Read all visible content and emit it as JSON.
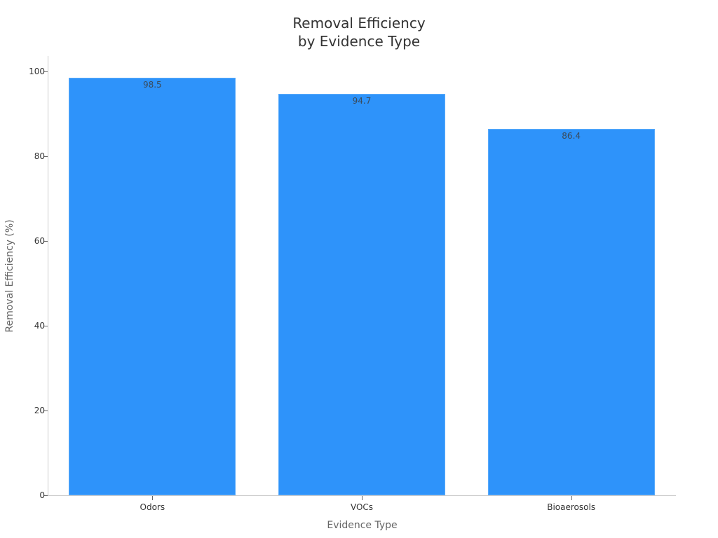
{
  "chart_data": {
    "type": "bar",
    "title": "Removal Efficiency by Evidence Type",
    "title_lines": [
      "Removal Efficiency",
      "by Evidence Type"
    ],
    "xlabel": "Evidence Type",
    "ylabel": "Removal Efficiency (%)",
    "categories": [
      "Odors",
      "VOCs",
      "Bioaerosols"
    ],
    "values": [
      98.5,
      94.7,
      86.4
    ],
    "data_labels": [
      "98.5",
      "94.7",
      "86.4"
    ],
    "ylim": [
      0,
      100
    ],
    "yticks": [
      0,
      20,
      40,
      60,
      80,
      100
    ],
    "grid": false,
    "legend": null,
    "bar_color": "#2e93fa"
  }
}
